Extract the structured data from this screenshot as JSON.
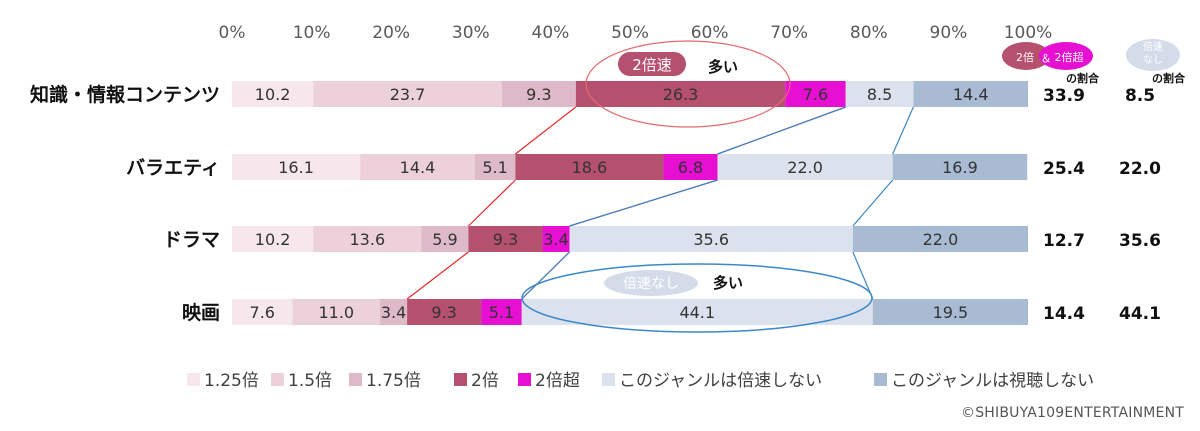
{
  "chart_data": {
    "type": "bar",
    "stacked": true,
    "orientation": "horizontal",
    "categories": [
      "知識・情報コンテンツ",
      "バラエティ",
      "ドラマ",
      "映画"
    ],
    "xlim": [
      0,
      100
    ],
    "x_ticks": [
      "0%",
      "10%",
      "20%",
      "30%",
      "40%",
      "50%",
      "60%",
      "70%",
      "80%",
      "90%",
      "100%"
    ],
    "series": [
      {
        "name": "1.25倍",
        "color": "#f6e7ec",
        "values": [
          10.2,
          16.1,
          10.2,
          7.6
        ]
      },
      {
        "name": "1.5倍",
        "color": "#ecd1da",
        "values": [
          23.7,
          14.4,
          13.6,
          11.0
        ]
      },
      {
        "name": "1.75倍",
        "color": "#deb9c8",
        "values": [
          9.3,
          5.1,
          5.9,
          3.4
        ]
      },
      {
        "name": "2倍",
        "color": "#b5506f",
        "values": [
          26.3,
          18.6,
          9.3,
          9.3
        ]
      },
      {
        "name": "2倍超",
        "color": "#e60fd2",
        "values": [
          7.6,
          6.8,
          3.4,
          5.1
        ]
      },
      {
        "name": "このジャンルは倍速しない",
        "color": "#dbe2ee",
        "values": [
          8.5,
          22.0,
          35.6,
          44.1
        ]
      },
      {
        "name": "このジャンルは視聴しない",
        "color": "#a9bad3",
        "values": [
          14.4,
          16.9,
          22.0,
          19.5
        ]
      }
    ],
    "extra_columns": {
      "col1": {
        "badge_left": "2倍",
        "badge_amp": "＆",
        "badge_right": "2倍超",
        "caption": "の割合",
        "values": [
          "33.9",
          "25.4",
          "12.7",
          "14.4"
        ]
      },
      "col2": {
        "badge_line1": "倍速",
        "badge_line2": "なし",
        "caption": "の割合",
        "values": [
          "8.5",
          "22.0",
          "35.6",
          "44.1"
        ]
      }
    },
    "annotations": {
      "top": {
        "badge": "2倍速",
        "text": "多い"
      },
      "bottom": {
        "badge": "倍速なし",
        "text": "多い"
      }
    },
    "grid": false,
    "legend": "bottom"
  },
  "copyright": "©SHIBUYA109ENTERTAINMENT"
}
